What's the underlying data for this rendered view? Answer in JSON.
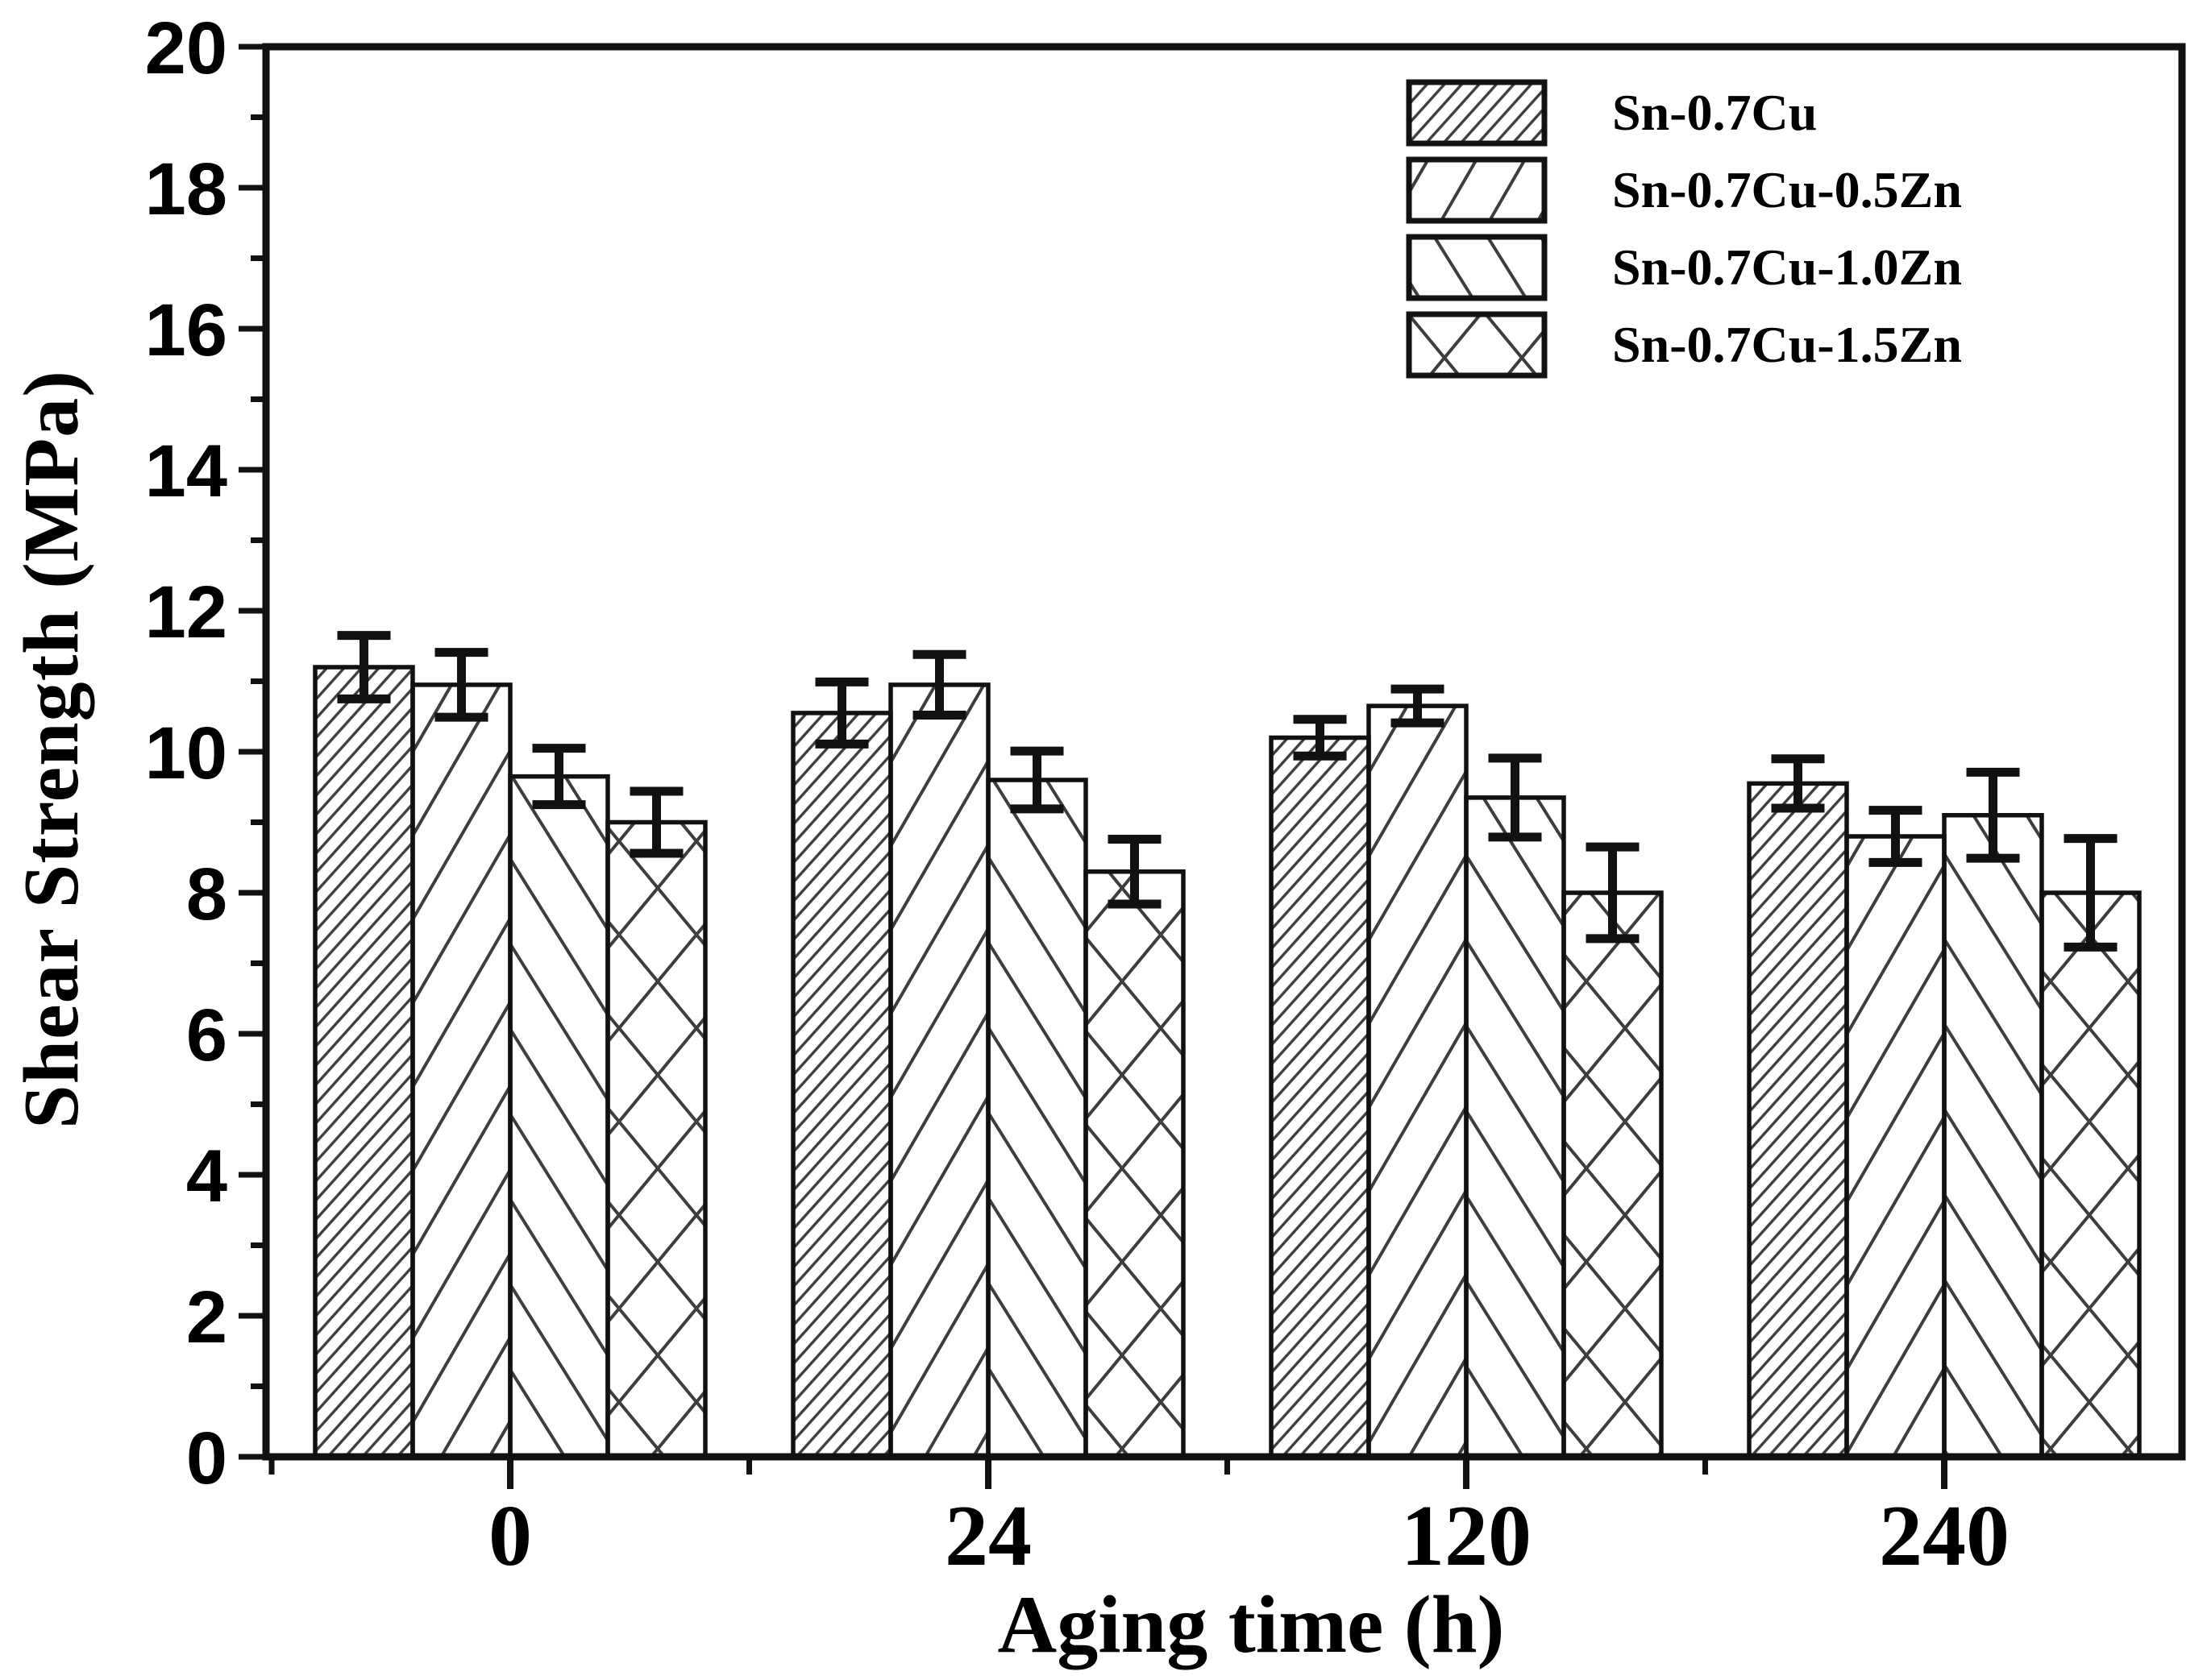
{
  "chart_data": {
    "type": "bar",
    "title": "",
    "xlabel": "Aging time (h)",
    "ylabel": "Shear Strength (MPa)",
    "categories": [
      "0",
      "24",
      "120",
      "240"
    ],
    "ylim": [
      0,
      20
    ],
    "yticks": [
      0,
      2,
      4,
      6,
      8,
      10,
      12,
      14,
      16,
      18,
      20
    ],
    "ytick_minor_step": 1,
    "grid": false,
    "legend_position": "top-right",
    "bar_outline_color": "#111111",
    "hatch_color": "#3d3d3d",
    "error_bar_color": "#111111",
    "series": [
      {
        "name": "Sn-0.7Cu",
        "hatch": "dense-forward-diagonal",
        "values": [
          11.2,
          10.55,
          10.2,
          9.55
        ],
        "errors": [
          0.45,
          0.44,
          0.26,
          0.35
        ]
      },
      {
        "name": "Sn-0.7Cu-0.5Zn",
        "hatch": "forward-diagonal",
        "values": [
          10.95,
          10.95,
          10.65,
          8.8
        ],
        "errors": [
          0.46,
          0.43,
          0.24,
          0.37
        ]
      },
      {
        "name": "Sn-0.7Cu-1.0Zn",
        "hatch": "backward-diagonal",
        "values": [
          9.65,
          9.6,
          9.35,
          9.1
        ],
        "errors": [
          0.4,
          0.41,
          0.56,
          0.61
        ]
      },
      {
        "name": "Sn-0.7Cu-1.5Zn",
        "hatch": "diagonal-crosshatch",
        "values": [
          9.0,
          8.3,
          8.0,
          8.0
        ],
        "errors": [
          0.44,
          0.46,
          0.65,
          0.77
        ]
      }
    ]
  }
}
